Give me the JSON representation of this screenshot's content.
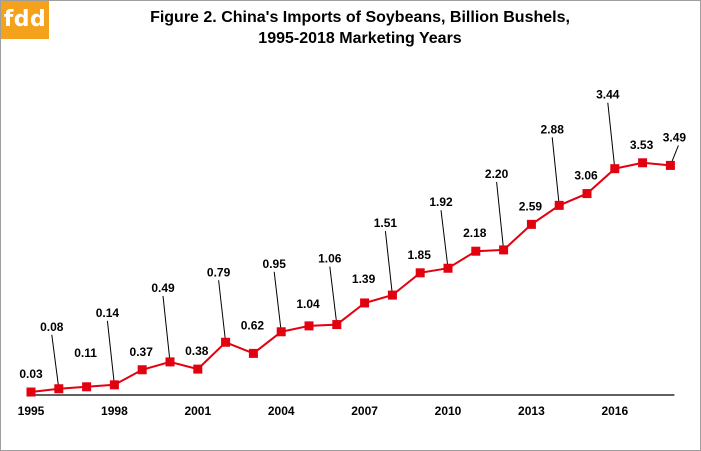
{
  "logo": {
    "text": "fdd",
    "color": "#f4a21b"
  },
  "chart_data": {
    "type": "line",
    "title_lines": [
      "Figure 2. China's Imports of Soybeans, Billion Bushels,",
      "1995-2018 Marketing Years"
    ],
    "xlabel": "",
    "ylabel": "",
    "x": [
      1995,
      1996,
      1997,
      1998,
      1999,
      2000,
      2001,
      2002,
      2003,
      2004,
      2005,
      2006,
      2007,
      2008,
      2009,
      2010,
      2011,
      2012,
      2013,
      2014,
      2015,
      2016,
      2017,
      2018
    ],
    "xticks": [
      "1995",
      "1998",
      "2001",
      "2004",
      "2007",
      "2010",
      "2013",
      "2016"
    ],
    "series": [
      {
        "color": "#e3000f",
        "marker": "square",
        "values": [
          0.03,
          0.08,
          0.11,
          0.14,
          0.37,
          0.49,
          0.38,
          0.79,
          0.62,
          0.95,
          1.04,
          1.06,
          1.39,
          1.51,
          1.85,
          1.92,
          2.18,
          2.2,
          2.59,
          2.88,
          3.06,
          3.44,
          3.53,
          3.49
        ],
        "labels": [
          "0.03",
          "0.08",
          "0.11",
          "0.14",
          "0.37",
          "0.49",
          "0.38",
          "0.79",
          "0.62",
          "0.95",
          "1.04",
          "1.06",
          "1.39",
          "1.51",
          "1.85",
          "1.92",
          "2.18",
          "2.20",
          "2.59",
          "2.88",
          "3.06",
          "3.44",
          "3.53",
          "3.49"
        ]
      }
    ],
    "ylim": [
      0,
      3.6
    ],
    "grid": false,
    "legend": "none"
  }
}
